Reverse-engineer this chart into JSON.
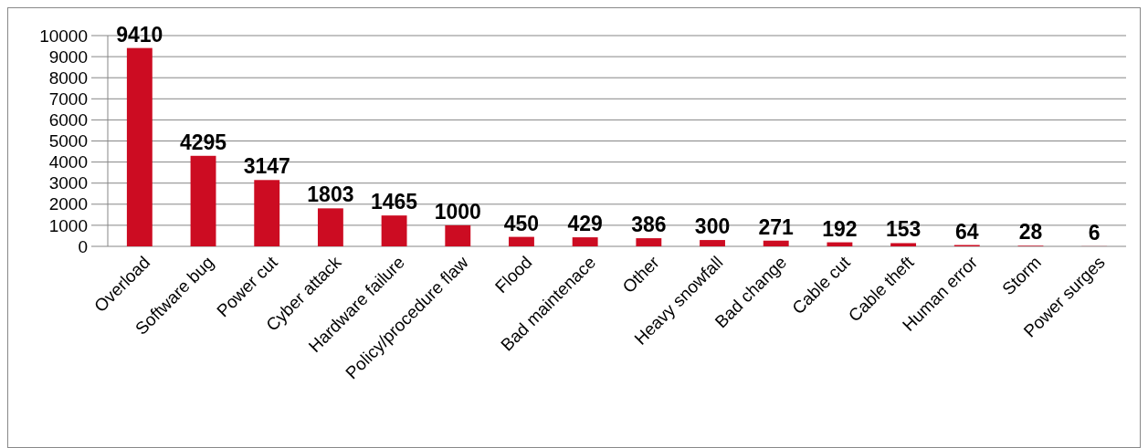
{
  "chart_data": {
    "type": "bar",
    "categories": [
      "Overload",
      "Software bug",
      "Power cut",
      "Cyber attack",
      "Hardware failure",
      "Policy/procedure flaw",
      "Flood",
      "Bad maintenace",
      "Other",
      "Heavy snowfall",
      "Bad change",
      "Cable cut",
      "Cable theft",
      "Human error",
      "Storm",
      "Power surges"
    ],
    "values": [
      9410,
      4295,
      3147,
      1803,
      1465,
      1000,
      450,
      429,
      386,
      300,
      271,
      192,
      153,
      64,
      28,
      6
    ],
    "color": "#cc0c22",
    "ylim": [
      0,
      10000
    ],
    "yticks": [
      0,
      1000,
      2000,
      3000,
      4000,
      5000,
      6000,
      7000,
      8000,
      9000,
      10000
    ],
    "grid": "y",
    "data_labels": true
  }
}
